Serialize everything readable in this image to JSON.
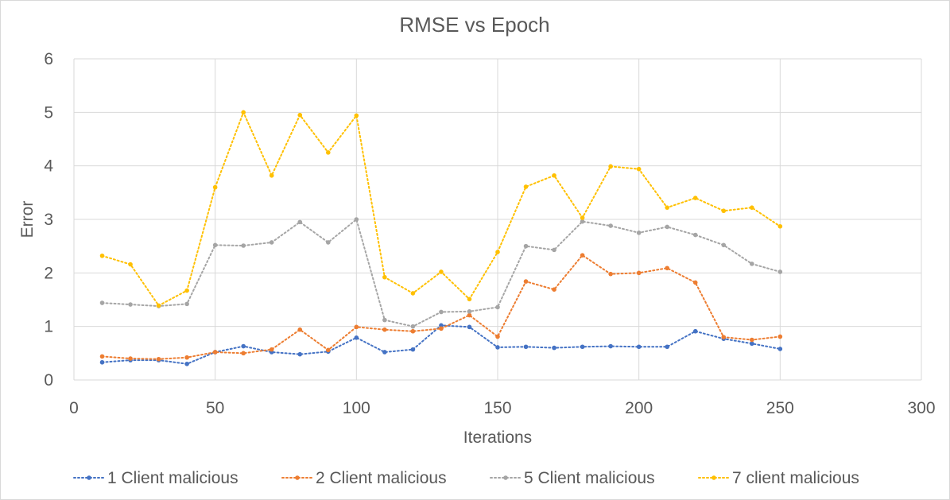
{
  "chart_data": {
    "type": "line",
    "title": "RMSE vs Epoch",
    "xlabel": "Iterations",
    "ylabel": "Error",
    "xlim": [
      0,
      300
    ],
    "ylim": [
      0,
      6
    ],
    "x_ticks": [
      0,
      50,
      100,
      150,
      200,
      250,
      300
    ],
    "y_ticks": [
      0,
      1,
      2,
      3,
      4,
      5,
      6
    ],
    "grid": true,
    "line_style": "dotted",
    "legend_position": "bottom",
    "x": [
      10,
      20,
      30,
      40,
      50,
      60,
      70,
      80,
      90,
      100,
      110,
      120,
      130,
      140,
      150,
      160,
      170,
      180,
      190,
      200,
      210,
      220,
      230,
      240,
      250
    ],
    "series": [
      {
        "name": "1 Client malicious",
        "color": "#4472c4",
        "values": [
          0.33,
          0.37,
          0.37,
          0.3,
          0.52,
          0.63,
          0.52,
          0.48,
          0.53,
          0.79,
          0.52,
          0.57,
          1.02,
          0.99,
          0.61,
          0.62,
          0.6,
          0.62,
          0.63,
          0.62,
          0.62,
          0.91,
          0.77,
          0.68,
          0.58
        ]
      },
      {
        "name": "2 Client malicious",
        "color": "#ed7d31",
        "values": [
          0.44,
          0.4,
          0.39,
          0.42,
          0.52,
          0.5,
          0.57,
          0.94,
          0.56,
          0.99,
          0.94,
          0.91,
          0.96,
          1.21,
          0.81,
          1.84,
          1.69,
          2.33,
          1.98,
          2.0,
          2.09,
          1.82,
          0.8,
          0.75,
          0.81
        ]
      },
      {
        "name": "5 Client malicious",
        "color": "#a5a5a5",
        "values": [
          1.44,
          1.41,
          1.38,
          1.42,
          2.52,
          2.51,
          2.57,
          2.95,
          2.57,
          3.0,
          1.12,
          1.0,
          1.27,
          1.28,
          1.36,
          2.5,
          2.43,
          2.96,
          2.88,
          2.75,
          2.86,
          2.71,
          2.52,
          2.17,
          2.02
        ]
      },
      {
        "name": "7 client malicious",
        "color": "#ffc000",
        "values": [
          2.32,
          2.16,
          1.39,
          1.67,
          3.6,
          5.0,
          3.82,
          4.95,
          4.25,
          4.94,
          1.92,
          1.62,
          2.02,
          1.51,
          2.39,
          3.61,
          3.82,
          3.03,
          3.99,
          3.94,
          3.22,
          3.4,
          3.16,
          3.22,
          2.87
        ]
      }
    ]
  }
}
